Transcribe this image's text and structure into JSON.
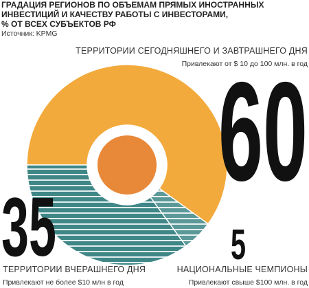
{
  "chart_data": {
    "type": "pie",
    "title": [
      "ГРАДАЦИЯ РЕГИОНОВ ПО ОБЪЕМАМ ПРЯМЫХ ИНОСТРАННЫХ",
      "ИНВЕСТИЦИЙ И КАЧЕСТВУ РАБОТЫ С ИНВЕСТОРАМИ,",
      "% ОТ ВСЕХ СУБЪЕКТОВ РФ"
    ],
    "source": "Источник: KPMG",
    "categories": [
      "ТЕРРИТОРИИ СЕГОДНЯШНЕГО И ЗАВТРАШНЕГО ДНЯ",
      "НАЦИОНАЛЬНЫЕ ЧЕМПИОНЫ",
      "ТЕРРИТОРИИ ВЧЕРАШНЕГО ДНЯ"
    ],
    "notes": [
      "Привлекают от $ 10 до 100 млн. в год",
      "Привлекают свыше $100 млн. в год",
      "Привлекают не более $10 млн в год"
    ],
    "values": [
      60,
      5,
      35
    ],
    "colors": [
      "#f3aa3c",
      "#5b9999",
      "#3f8787"
    ],
    "hatched": [
      false,
      true,
      true
    ]
  }
}
